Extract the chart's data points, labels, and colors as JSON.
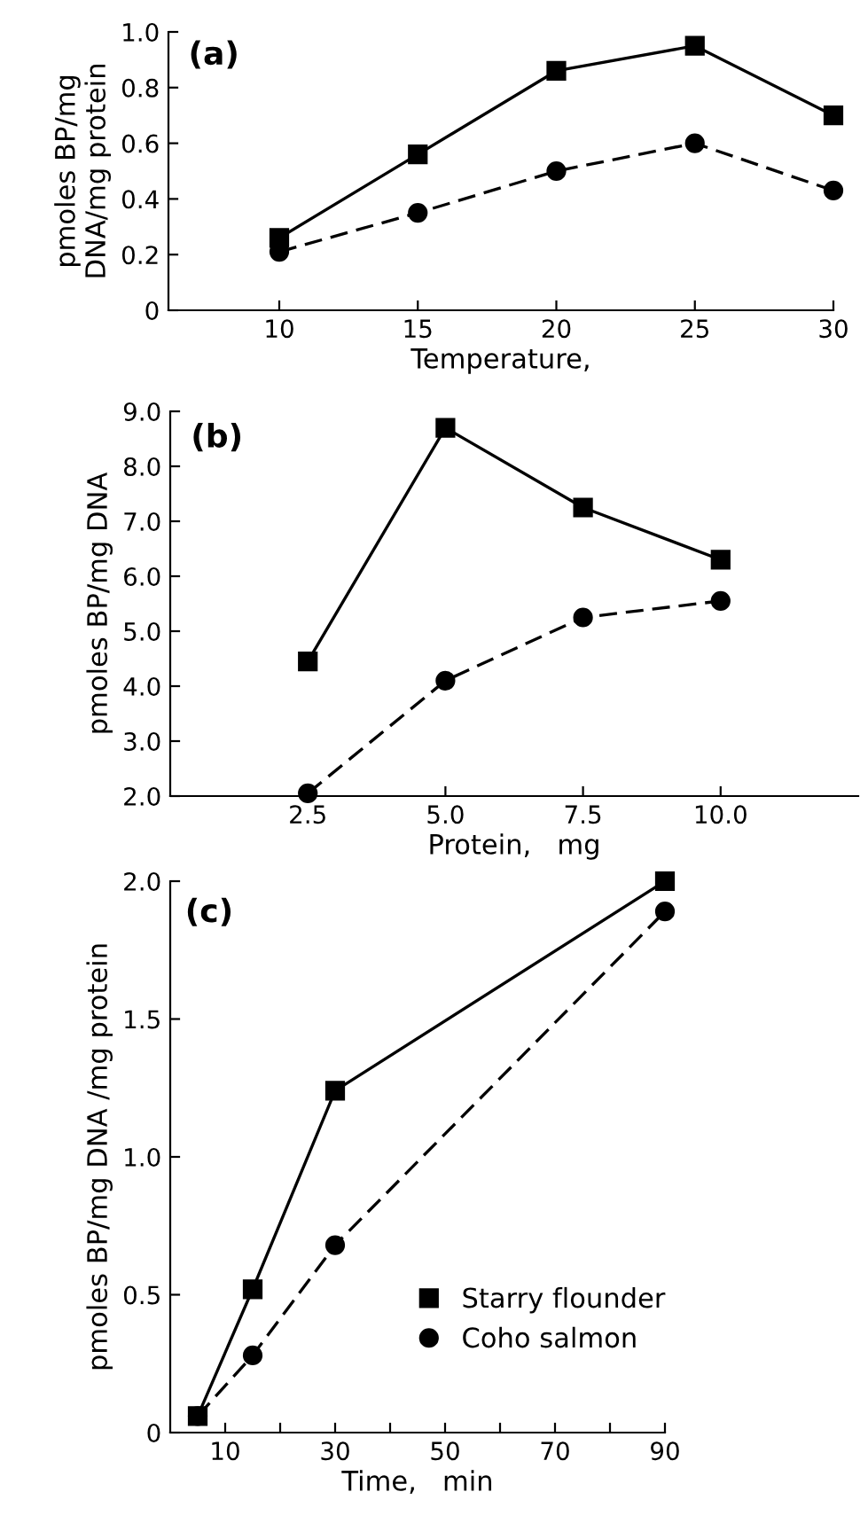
{
  "chart_data": [
    {
      "type": "line",
      "xlabel": "Temperature,",
      "ylabel": "pmoles BP/mg\nDNA/mg protein",
      "annotations": [
        "(a)"
      ],
      "x": [
        10,
        15,
        20,
        25,
        30
      ],
      "series": [
        {
          "color": "#000000",
          "marker": "square",
          "line_style": "solid",
          "values": [
            0.26,
            0.56,
            0.86,
            0.95,
            0.7
          ]
        },
        {
          "color": "#000000",
          "marker": "circle",
          "line_style": "dashed",
          "values": [
            0.21,
            0.35,
            0.5,
            0.6,
            0.43
          ]
        }
      ],
      "xlim": [
        6,
        30
      ],
      "xticks": [
        10,
        15,
        20,
        25,
        30
      ],
      "ylim": [
        0,
        1.0
      ],
      "yticks": [
        0,
        {
          "value": 0.2,
          "label": "0.2"
        },
        {
          "value": 0.4,
          "label": "0.4"
        },
        {
          "value": 0.6,
          "label": "0.6"
        },
        {
          "value": 0.8,
          "label": "0.8"
        },
        {
          "value": 1.0,
          "label": "1.0"
        }
      ],
      "grid": false,
      "legend": false
    },
    {
      "type": "line",
      "xlabel": "Protein,   mg",
      "ylabel": "pmoles BP/mg DNA",
      "annotations": [
        "(b)"
      ],
      "x": [
        2.5,
        5.0,
        7.5,
        10.0
      ],
      "series": [
        {
          "color": "#000000",
          "marker": "square",
          "line_style": "solid",
          "values": [
            4.45,
            8.7,
            7.25,
            6.3
          ]
        },
        {
          "color": "#000000",
          "marker": "circle",
          "line_style": "dashed",
          "values": [
            2.05,
            4.1,
            5.25,
            5.55
          ]
        }
      ],
      "xlim": [
        0,
        12.5
      ],
      "xticks": [
        {
          "value": 2.5,
          "label": "2.5"
        },
        {
          "value": 5.0,
          "label": "5.0"
        },
        {
          "value": 7.5,
          "label": "7.5"
        },
        {
          "value": 10.0,
          "label": "10.0"
        }
      ],
      "ylim": [
        2.0,
        9.0
      ],
      "yticks": [
        {
          "value": 2,
          "label": "2.0"
        },
        {
          "value": 3,
          "label": "3.0"
        },
        {
          "value": 4,
          "label": "4.0"
        },
        {
          "value": 5,
          "label": "5.0"
        },
        {
          "value": 6,
          "label": "6.0"
        },
        {
          "value": 7,
          "label": "7.0"
        },
        {
          "value": 8,
          "label": "8.0"
        },
        {
          "value": 9,
          "label": "9.0"
        }
      ],
      "grid": false,
      "legend": false
    },
    {
      "type": "line",
      "xlabel": "Time,   min",
      "ylabel": "pmoles BP/mg DNA /mg protein",
      "annotations": [
        "(c)"
      ],
      "x": [
        5,
        15,
        30,
        90
      ],
      "series": [
        {
          "name": "Starry flounder",
          "color": "#000000",
          "marker": "square",
          "line_style": "solid",
          "values": [
            0.06,
            0.52,
            1.24,
            2.0
          ]
        },
        {
          "name": "Coho salmon",
          "color": "#000000",
          "marker": "circle",
          "line_style": "dashed",
          "values": [
            0.06,
            0.28,
            0.68,
            1.89
          ]
        }
      ],
      "xlim": [
        0,
        90
      ],
      "xticks": [
        10,
        {
          "value": 20,
          "label": null
        },
        30,
        {
          "value": 40,
          "label": null
        },
        50,
        {
          "value": 60,
          "label": null
        },
        70,
        {
          "value": 80,
          "label": null
        },
        90
      ],
      "ylim": [
        0,
        2.0
      ],
      "yticks": [
        0,
        {
          "value": 0.5,
          "label": "0.5"
        },
        {
          "value": 1.0,
          "label": "1.0"
        },
        {
          "value": 1.5,
          "label": "1.5"
        },
        {
          "value": 2.0,
          "label": "2.0"
        }
      ],
      "grid": false,
      "legend": "lower right"
    }
  ]
}
